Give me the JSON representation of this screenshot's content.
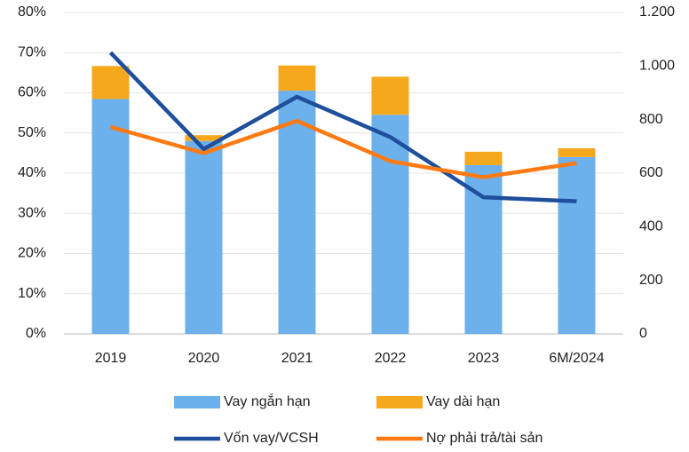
{
  "chart_data": {
    "type": "bar-line",
    "categories": [
      "2019",
      "2020",
      "2021",
      "2022",
      "2023",
      "6M/2024"
    ],
    "series": [
      {
        "name": "Vay ngắn hạn",
        "type": "bar",
        "axis": "y2",
        "color": "#6cb0ec",
        "values": [
          877,
          720,
          908,
          818,
          630,
          660
        ]
      },
      {
        "name": "Vay dài hạn",
        "type": "bar",
        "axis": "y2",
        "color": "#f5a81c",
        "values": [
          123,
          22,
          94,
          142,
          50,
          33
        ]
      },
      {
        "name": "Vốn vay/VCSH",
        "type": "line",
        "color": "#1f4e9c",
        "values": [
          70,
          46,
          59,
          49,
          34,
          33
        ]
      },
      {
        "name": "Nợ phải trả/tài sản",
        "type": "line",
        "color": "#ff7a12",
        "values": [
          51.5,
          45,
          53,
          43,
          39,
          42.5
        ]
      }
    ],
    "ylim": [
      0,
      80
    ],
    "yticks": [
      {
        "value": 0,
        "label": "0%"
      },
      {
        "value": 10,
        "label": "10%"
      },
      {
        "value": 20,
        "label": "20%"
      },
      {
        "value": 30,
        "label": "30%"
      },
      {
        "value": 40,
        "label": "40%"
      },
      {
        "value": 50,
        "label": "50%"
      },
      {
        "value": 60,
        "label": "60%"
      },
      {
        "value": 70,
        "label": "70%"
      },
      {
        "value": 80,
        "label": "80%"
      }
    ],
    "y2lim": [
      0,
      1200
    ],
    "y2ticks": [
      0,
      200,
      400,
      600,
      800,
      {
        "value": 1000,
        "label": "1.000"
      },
      {
        "value": 1200,
        "label": "1.200"
      }
    ],
    "grid": true
  }
}
